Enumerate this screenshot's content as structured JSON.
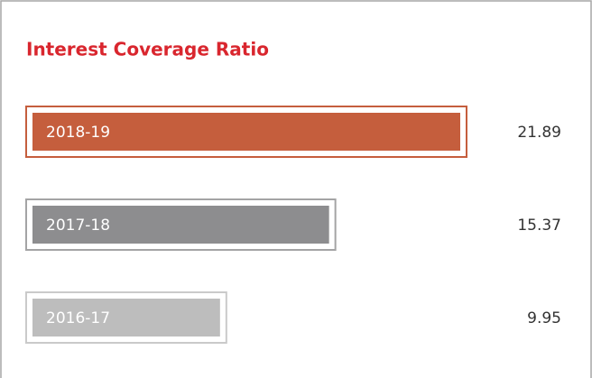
{
  "chart_data": {
    "type": "bar",
    "title": "Interest Coverage Ratio",
    "categories": [
      "2018-19",
      "2017-18",
      "2016-17"
    ],
    "values": [
      21.89,
      15.37,
      9.95
    ],
    "colors": [
      "#c55e3d",
      "#8d8d8f",
      "#bdbdbd"
    ]
  }
}
